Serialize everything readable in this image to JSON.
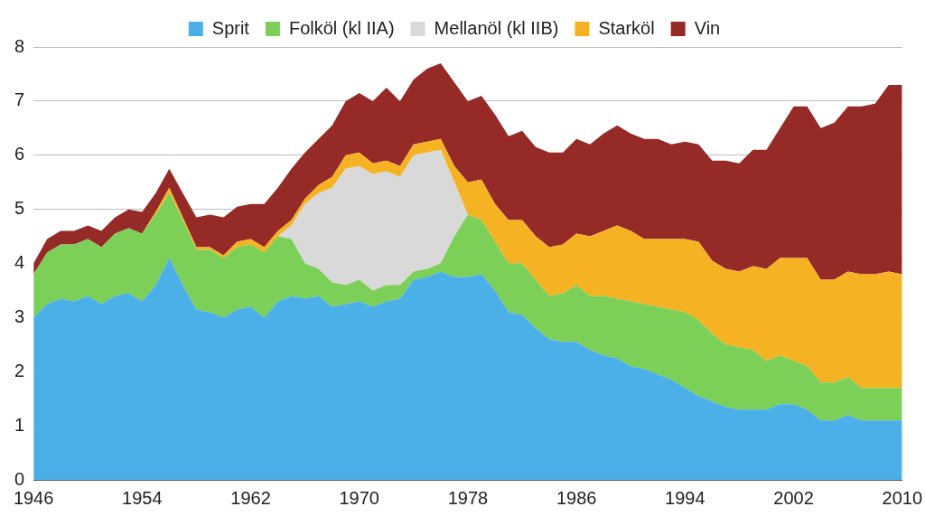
{
  "chart_data": {
    "type": "area",
    "x": [
      1946,
      1947,
      1948,
      1949,
      1950,
      1951,
      1952,
      1953,
      1954,
      1955,
      1956,
      1957,
      1958,
      1959,
      1960,
      1961,
      1962,
      1963,
      1964,
      1965,
      1966,
      1967,
      1968,
      1969,
      1970,
      1971,
      1972,
      1973,
      1974,
      1975,
      1976,
      1977,
      1978,
      1979,
      1980,
      1981,
      1982,
      1983,
      1984,
      1985,
      1986,
      1987,
      1988,
      1989,
      1990,
      1991,
      1992,
      1993,
      1994,
      1995,
      1996,
      1997,
      1998,
      1999,
      2000,
      2001,
      2002,
      2003,
      2004,
      2005,
      2006,
      2007,
      2008,
      2009,
      2010
    ],
    "series": [
      {
        "name": "Sprit",
        "color": "#4bb0e7",
        "values": [
          3.0,
          3.25,
          3.35,
          3.3,
          3.4,
          3.25,
          3.4,
          3.45,
          3.3,
          3.6,
          4.1,
          3.6,
          3.15,
          3.1,
          3.0,
          3.15,
          3.2,
          3.0,
          3.3,
          3.4,
          3.35,
          3.4,
          3.2,
          3.25,
          3.3,
          3.2,
          3.3,
          3.35,
          3.7,
          3.75,
          3.85,
          3.75,
          3.75,
          3.8,
          3.5,
          3.1,
          3.05,
          2.8,
          2.6,
          2.55,
          2.55,
          2.4,
          2.3,
          2.25,
          2.1,
          2.05,
          1.95,
          1.85,
          1.7,
          1.55,
          1.45,
          1.35,
          1.3,
          1.3,
          1.3,
          1.4,
          1.4,
          1.3,
          1.1,
          1.1,
          1.2,
          1.1,
          1.1,
          1.1,
          1.1
        ]
      },
      {
        "name": "Folköl (kl IIA)",
        "color": "#7ccf57",
        "values": [
          0.8,
          0.95,
          1.0,
          1.05,
          1.05,
          1.05,
          1.15,
          1.2,
          1.25,
          1.3,
          1.2,
          1.2,
          1.1,
          1.15,
          1.1,
          1.15,
          1.15,
          1.2,
          1.2,
          1.05,
          0.65,
          0.5,
          0.45,
          0.35,
          0.4,
          0.3,
          0.3,
          0.25,
          0.15,
          0.15,
          0.15,
          0.75,
          1.15,
          1.0,
          0.9,
          0.9,
          0.95,
          0.9,
          0.8,
          0.9,
          1.05,
          1.0,
          1.1,
          1.1,
          1.2,
          1.2,
          1.25,
          1.3,
          1.4,
          1.4,
          1.25,
          1.15,
          1.15,
          1.1,
          0.9,
          0.9,
          0.8,
          0.8,
          0.7,
          0.7,
          0.7,
          0.6,
          0.6,
          0.6,
          0.6
        ]
      },
      {
        "name": "Mellanöl (kl IIB)",
        "color": "#d9d9d9",
        "values": [
          0,
          0,
          0,
          0,
          0,
          0,
          0,
          0,
          0,
          0,
          0,
          0,
          0,
          0,
          0,
          0,
          0,
          0,
          0,
          0.25,
          1.1,
          1.4,
          1.75,
          2.15,
          2.1,
          2.15,
          2.1,
          2.0,
          2.15,
          2.15,
          2.1,
          1.0,
          0,
          0,
          0,
          0,
          0,
          0,
          0,
          0,
          0,
          0,
          0,
          0,
          0,
          0,
          0,
          0,
          0,
          0,
          0,
          0,
          0,
          0,
          0,
          0,
          0,
          0,
          0,
          0,
          0,
          0,
          0,
          0,
          0
        ]
      },
      {
        "name": "Starköl",
        "color": "#f5b324",
        "values": [
          0,
          0,
          0,
          0,
          0,
          0,
          0,
          0,
          0,
          0.05,
          0.1,
          0.05,
          0.05,
          0.05,
          0.05,
          0.1,
          0.1,
          0.1,
          0.1,
          0.1,
          0.1,
          0.15,
          0.2,
          0.25,
          0.25,
          0.2,
          0.2,
          0.2,
          0.2,
          0.2,
          0.2,
          0.3,
          0.6,
          0.75,
          0.7,
          0.8,
          0.8,
          0.8,
          0.9,
          0.9,
          0.95,
          1.1,
          1.2,
          1.35,
          1.3,
          1.2,
          1.25,
          1.3,
          1.35,
          1.45,
          1.35,
          1.4,
          1.4,
          1.55,
          1.7,
          1.8,
          1.9,
          2.0,
          1.9,
          1.9,
          1.95,
          2.1,
          2.1,
          2.15,
          2.1
        ]
      },
      {
        "name": "Vin",
        "color": "#952a27",
        "values": [
          0.2,
          0.25,
          0.25,
          0.25,
          0.25,
          0.3,
          0.3,
          0.35,
          0.4,
          0.35,
          0.35,
          0.45,
          0.55,
          0.6,
          0.7,
          0.65,
          0.65,
          0.8,
          0.8,
          0.95,
          0.85,
          0.85,
          0.95,
          1.0,
          1.1,
          1.15,
          1.35,
          1.2,
          1.2,
          1.35,
          1.4,
          1.55,
          1.5,
          1.55,
          1.65,
          1.55,
          1.65,
          1.65,
          1.75,
          1.7,
          1.75,
          1.7,
          1.8,
          1.85,
          1.8,
          1.85,
          1.85,
          1.75,
          1.8,
          1.8,
          1.85,
          2.0,
          2.0,
          2.15,
          2.2,
          2.4,
          2.8,
          2.8,
          2.8,
          2.9,
          3.05,
          3.1,
          3.15,
          3.45,
          3.5
        ]
      }
    ],
    "xlim": [
      1946,
      2010
    ],
    "xticks": [
      1946,
      1954,
      1962,
      1970,
      1978,
      1986,
      1994,
      2002,
      2010
    ],
    "ylim": [
      0,
      8
    ],
    "yticks": [
      0,
      1,
      2,
      3,
      4,
      5,
      6,
      7,
      8
    ],
    "grid": true,
    "legend": "top",
    "stacked": true
  }
}
